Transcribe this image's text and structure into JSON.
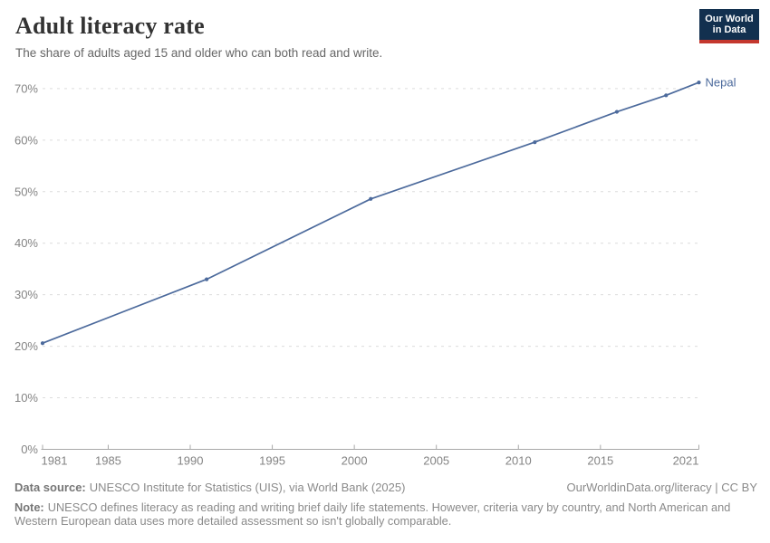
{
  "header": {
    "title": "Adult literacy rate",
    "subtitle": "The share of adults aged 15 and older who can both read and write.",
    "logo_line1": "Our World",
    "logo_line2": "in Data"
  },
  "chart_data": {
    "type": "line",
    "title": "Adult literacy rate",
    "xlabel": "",
    "ylabel": "",
    "xlim": [
      1981,
      2021
    ],
    "ylim": [
      0,
      73.5
    ],
    "grid": "horizontal-dashed",
    "legend_position": "end-of-line-label",
    "x_ticks": [
      1981,
      1985,
      1990,
      1995,
      2000,
      2005,
      2010,
      2015,
      2021
    ],
    "y_ticks": [
      0,
      10,
      20,
      30,
      40,
      50,
      60,
      70
    ],
    "y_suffix": "%",
    "series": [
      {
        "name": "Nepal",
        "color": "#4c6a9c",
        "x": [
          1981,
          1991,
          2001,
          2011,
          2016,
          2019,
          2021
        ],
        "values": [
          20.6,
          33.0,
          48.6,
          59.6,
          65.5,
          68.7,
          71.2
        ]
      }
    ]
  },
  "footer": {
    "source_label": "Data source:",
    "source_text": "UNESCO Institute for Statistics (UIS), via World Bank (2025)",
    "license_text": "OurWorldinData.org/literacy | CC BY",
    "note_label": "Note:",
    "note_text": "UNESCO defines literacy as reading and writing brief daily life statements. However, criteria vary by country, and North American and Western European data uses more detailed assessment so isn't globally comparable."
  },
  "colors": {
    "accent_line": "#4c6a9c",
    "grid": "#dcdcdc",
    "axis": "#a8a8a8",
    "tick_text": "#848484",
    "muted_text": "#8a8a8a",
    "title_text": "#333333",
    "logo_bg": "#12304f",
    "logo_red": "#c4372e"
  }
}
